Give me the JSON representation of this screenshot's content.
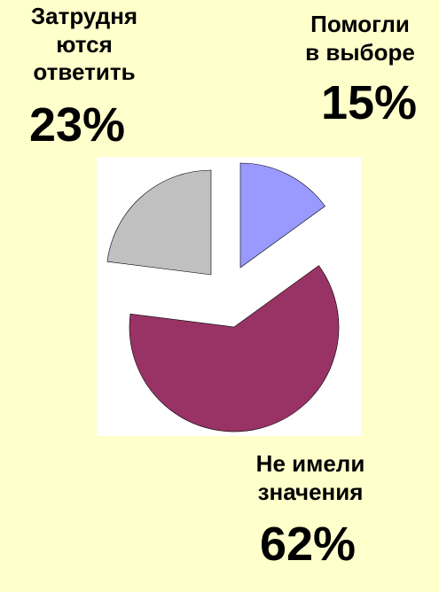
{
  "chart_data": {
    "type": "pie",
    "slices": [
      {
        "label": "Помогли в выборе",
        "value": 15,
        "value_label": "15%",
        "color": "#9999FF"
      },
      {
        "label": "Не имели значения",
        "value": 62,
        "value_label": "62%",
        "color": "#993366"
      },
      {
        "label": "Затрудняются ответить",
        "value": 23,
        "value_label": "23%",
        "color": "#C0C0C0"
      }
    ],
    "label_lines": {
      "hard": [
        "Затрудня",
        "ются",
        "ответить"
      ],
      "helped": [
        "Помогли",
        "в выборе"
      ],
      "none": [
        "Не имели",
        "значения"
      ]
    },
    "exploded": true,
    "start_angle_deg": 0,
    "direction": "clockwise"
  },
  "colors": {
    "background": "#FFFFCC",
    "card": "#FFFFFF",
    "text": "#000000"
  }
}
